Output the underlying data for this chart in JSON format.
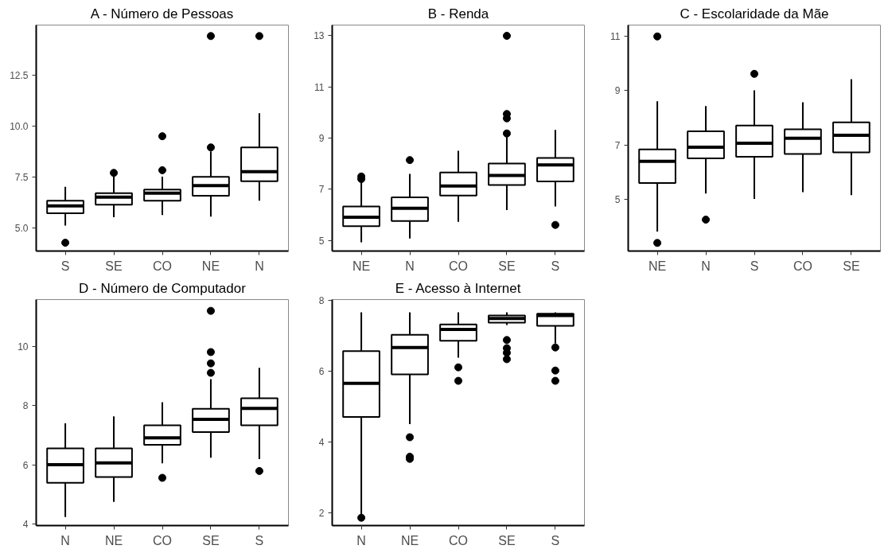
{
  "chart_data": [
    {
      "type": "box",
      "title": "A - Número de Pessoas",
      "categories": [
        "S",
        "SE",
        "CO",
        "NE",
        "N"
      ],
      "boxes": [
        {
          "low": 5.1,
          "q1": 5.71,
          "median": 6.07,
          "q3": 6.32,
          "high": 7.01,
          "outliers": [
            4.26
          ]
        },
        {
          "low": 5.51,
          "q1": 6.13,
          "median": 6.5,
          "q3": 6.69,
          "high": 7.5,
          "outliers": [
            7.69
          ]
        },
        {
          "low": 5.62,
          "q1": 6.32,
          "median": 6.69,
          "q3": 6.87,
          "high": 7.5,
          "outliers": [
            7.82,
            9.49
          ]
        },
        {
          "low": 5.54,
          "q1": 6.57,
          "median": 7.06,
          "q3": 7.49,
          "high": 8.75,
          "outliers": [
            8.94,
            14.41
          ]
        },
        {
          "low": 6.32,
          "q1": 7.28,
          "median": 7.75,
          "q3": 8.94,
          "high": 10.62,
          "outliers": [
            14.41
          ]
        }
      ],
      "ylim": [
        3.85,
        14.95
      ],
      "yticks": [
        {
          "value": 5,
          "label": "5.0"
        },
        {
          "value": 7.5,
          "label": "7.5"
        },
        {
          "value": 10,
          "label": "10.0"
        },
        {
          "value": 12.5,
          "label": "12.5"
        }
      ]
    },
    {
      "type": "box",
      "title": "B - Renda",
      "categories": [
        "NE",
        "N",
        "CO",
        "SE",
        "S"
      ],
      "boxes": [
        {
          "low": 4.93,
          "q1": 5.56,
          "median": 5.91,
          "q3": 6.33,
          "high": 7.25,
          "outliers": [
            7.4,
            7.5
          ]
        },
        {
          "low": 5.08,
          "q1": 5.76,
          "median": 6.26,
          "q3": 6.69,
          "high": 7.6,
          "outliers": [
            8.14
          ]
        },
        {
          "low": 5.73,
          "q1": 6.76,
          "median": 7.13,
          "q3": 7.66,
          "high": 8.5
        },
        {
          "low": 6.19,
          "q1": 7.17,
          "median": 7.54,
          "q3": 8.01,
          "high": 9.06,
          "outliers": [
            9.18,
            9.77,
            9.94,
            12.99
          ]
        },
        {
          "low": 6.33,
          "q1": 7.31,
          "median": 7.95,
          "q3": 8.22,
          "high": 9.32,
          "outliers": [
            5.61
          ]
        }
      ],
      "ylim": [
        4.59,
        13.41
      ],
      "yticks": [
        5,
        7,
        9,
        11,
        13
      ]
    },
    {
      "type": "box",
      "title": "C - Escolaridade da Mãe",
      "categories": [
        "NE",
        "N",
        "S",
        "CO",
        "SE"
      ],
      "boxes": [
        {
          "low": 3.8,
          "q1": 5.59,
          "median": 6.39,
          "q3": 6.83,
          "high": 8.61,
          "outliers": [
            3.38,
            11.0
          ]
        },
        {
          "low": 5.2,
          "q1": 6.5,
          "median": 6.91,
          "q3": 7.5,
          "high": 8.43,
          "outliers": [
            4.24
          ]
        },
        {
          "low": 5.0,
          "q1": 6.56,
          "median": 7.06,
          "q3": 7.71,
          "high": 9.01,
          "outliers": [
            9.62
          ]
        },
        {
          "low": 5.25,
          "q1": 6.66,
          "median": 7.24,
          "q3": 7.57,
          "high": 8.57
        },
        {
          "low": 5.14,
          "q1": 6.72,
          "median": 7.35,
          "q3": 7.83,
          "high": 9.42
        }
      ],
      "ylim": [
        3.08,
        11.42
      ],
      "yticks": [
        5,
        7,
        9,
        11
      ]
    },
    {
      "type": "box",
      "title": "D - Número de Computador",
      "categories": [
        "N",
        "NE",
        "CO",
        "SE",
        "S"
      ],
      "boxes": [
        {
          "low": 4.24,
          "q1": 5.39,
          "median": 6.0,
          "q3": 6.55,
          "high": 7.4
        },
        {
          "low": 4.75,
          "q1": 5.59,
          "median": 6.06,
          "q3": 6.55,
          "high": 7.63
        },
        {
          "low": 6.05,
          "q1": 6.67,
          "median": 6.91,
          "q3": 7.33,
          "high": 8.11,
          "outliers": [
            5.56
          ]
        },
        {
          "low": 6.24,
          "q1": 7.1,
          "median": 7.53,
          "q3": 7.89,
          "high": 8.89,
          "outliers": [
            9.1,
            9.42,
            9.8,
            11.19
          ]
        },
        {
          "low": 6.19,
          "q1": 7.33,
          "median": 7.9,
          "q3": 8.24,
          "high": 9.27,
          "outliers": [
            5.79
          ]
        }
      ],
      "ylim": [
        3.95,
        11.57
      ],
      "yticks": [
        4,
        6,
        8,
        10
      ]
    },
    {
      "type": "box",
      "title": "E - Acesso à Internet",
      "categories": [
        "N",
        "NE",
        "CO",
        "SE",
        "S"
      ],
      "boxes": [
        {
          "low": 1.96,
          "q1": 4.71,
          "median": 5.66,
          "q3": 6.57,
          "high": 7.66,
          "outliers": [
            1.87
          ]
        },
        {
          "low": 4.51,
          "q1": 5.91,
          "median": 6.67,
          "q3": 7.03,
          "high": 7.66,
          "outliers": [
            3.53,
            3.59,
            4.14
          ]
        },
        {
          "low": 6.38,
          "q1": 6.86,
          "median": 7.18,
          "q3": 7.32,
          "high": 7.66,
          "outliers": [
            5.73,
            6.11
          ]
        },
        {
          "low": 7.3,
          "q1": 7.37,
          "median": 7.49,
          "q3": 7.57,
          "high": 7.66,
          "outliers": [
            6.34,
            6.52,
            6.65,
            6.88
          ]
        },
        {
          "low": 6.78,
          "q1": 7.28,
          "median": 7.57,
          "q3": 7.62,
          "high": 7.66,
          "outliers": [
            5.73,
            6.02,
            6.67
          ]
        }
      ],
      "ylim": [
        1.65,
        8.02
      ],
      "yticks": [
        2,
        4,
        6,
        8
      ]
    }
  ]
}
